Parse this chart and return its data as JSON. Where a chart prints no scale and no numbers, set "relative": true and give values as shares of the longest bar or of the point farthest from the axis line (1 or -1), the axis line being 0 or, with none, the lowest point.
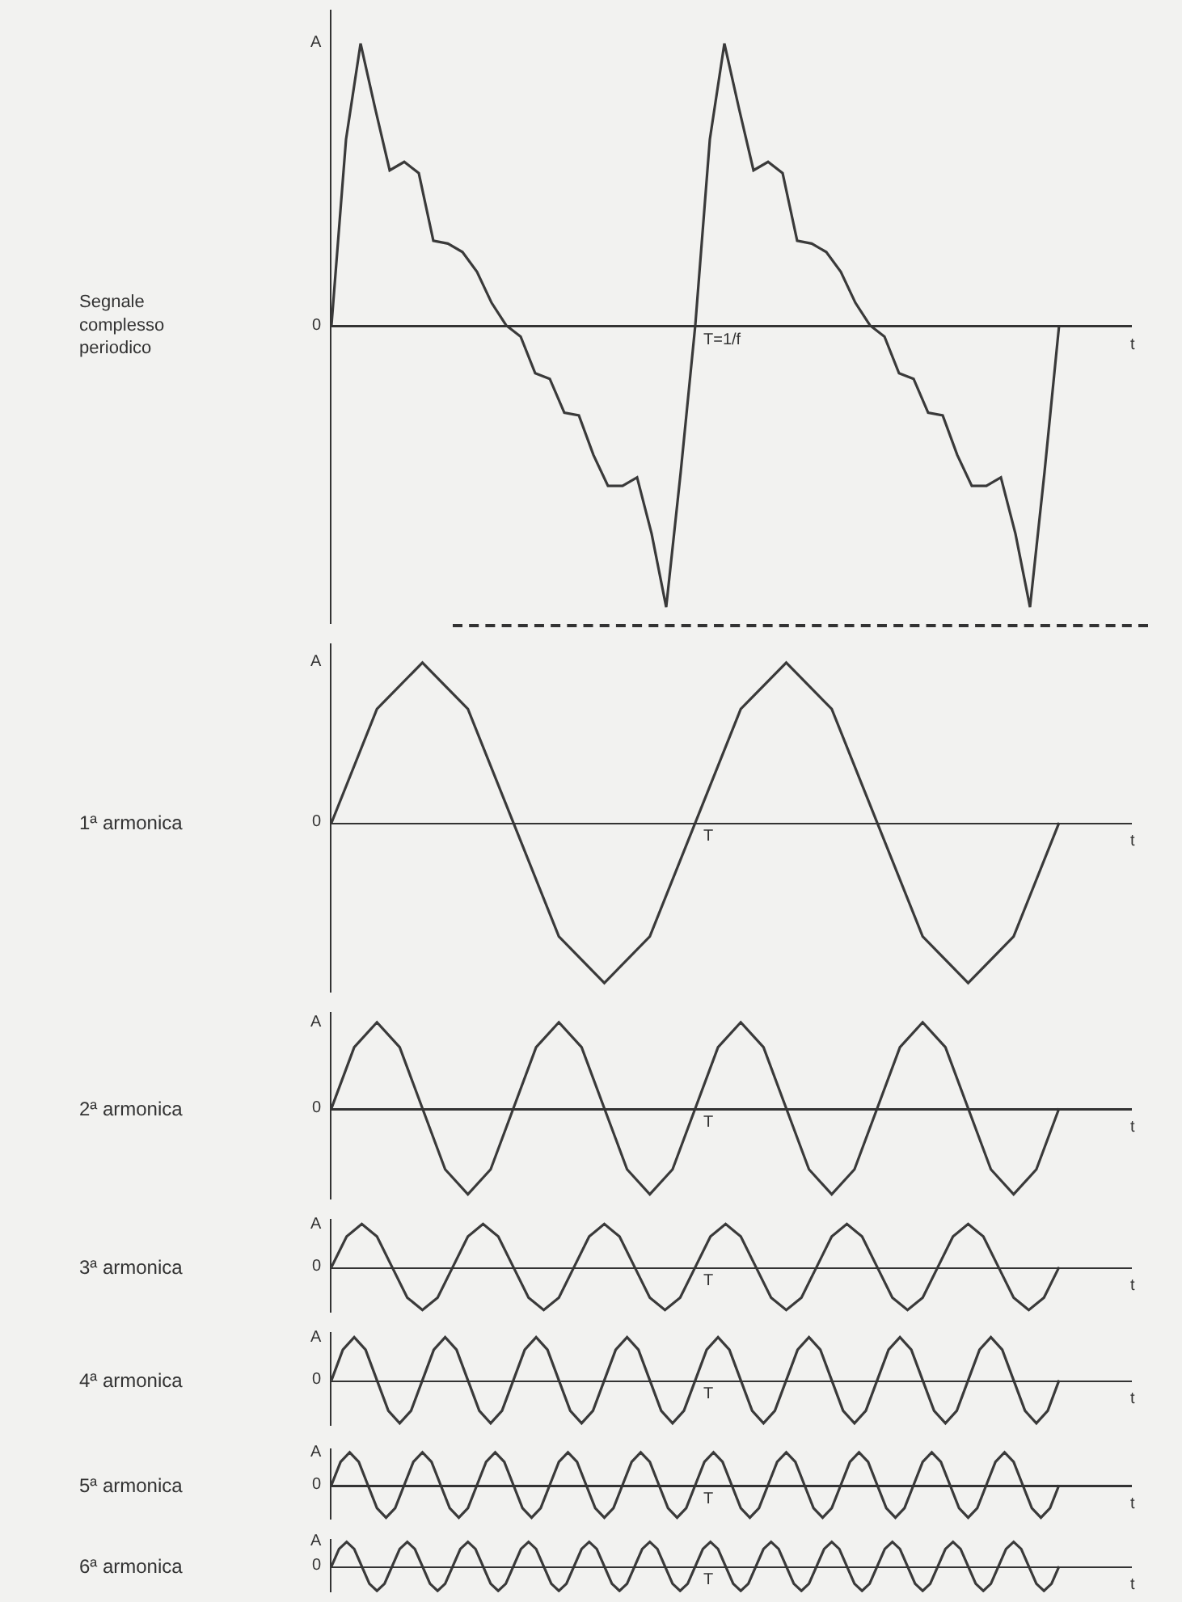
{
  "chart_data": [
    {
      "type": "line",
      "relative": true,
      "ylabel": "Segnale complesso periodico",
      "xlabel": "t",
      "annotations": [
        "A",
        "0",
        "T=1/f"
      ],
      "categories": [
        null,
        null,
        null,
        null,
        null,
        null,
        null,
        null,
        null,
        null,
        null,
        null,
        null,
        null,
        null,
        null,
        null,
        null,
        null,
        null,
        null,
        null,
        null,
        null,
        null,
        null,
        null,
        null,
        null,
        null,
        null,
        null,
        null,
        null,
        null,
        null,
        null,
        null,
        null,
        null,
        null,
        null,
        null,
        null,
        null,
        null,
        null,
        null,
        null,
        null,
        null
      ],
      "series": [
        {
          "color": "#3a3a3a",
          "values": [
            0,
            0.66,
            1,
            0.77,
            0.55,
            0.58,
            0.54,
            0.3,
            0.29,
            0.26,
            0.19,
            0.08,
            0,
            -0.04,
            -0.17,
            -0.19,
            -0.31,
            -0.32,
            -0.46,
            -0.57,
            -0.57,
            -0.54,
            -0.74,
            -1,
            -0.52,
            0,
            0.66,
            1,
            0.77,
            0.55,
            0.58,
            0.54,
            0.3,
            0.29,
            0.26,
            0.19,
            0.08,
            0,
            -0.04,
            -0.17,
            -0.19,
            -0.31,
            -0.32,
            -0.46,
            -0.57,
            -0.57,
            -0.54,
            -0.74,
            -1,
            -0.52,
            0
          ]
        }
      ]
    },
    {
      "type": "line",
      "relative": true,
      "ylabel": "1ª armonica",
      "xlabel": "t",
      "annotations": [
        "A",
        "0",
        "T"
      ],
      "categories": [
        null,
        null,
        null,
        null,
        null,
        null,
        null,
        null,
        null,
        null,
        null,
        null,
        null,
        null,
        null,
        null,
        null
      ],
      "series": [
        {
          "color": "#3a3a3a",
          "values": [
            0,
            0.71,
            1,
            0.71,
            0,
            -0.71,
            -1,
            -0.71,
            0,
            0.71,
            1,
            0.71,
            0,
            -0.71,
            -1,
            -0.71,
            0
          ]
        }
      ]
    },
    {
      "type": "line",
      "relative": true,
      "ylabel": "2ª armonica",
      "xlabel": "t",
      "annotations": [
        "A",
        "0",
        "T"
      ],
      "categories": [
        null,
        null,
        null,
        null,
        null,
        null,
        null,
        null,
        null,
        null,
        null,
        null,
        null,
        null,
        null,
        null,
        null,
        null,
        null,
        null,
        null,
        null,
        null,
        null,
        null,
        null,
        null,
        null,
        null,
        null,
        null,
        null,
        null
      ],
      "series": [
        {
          "color": "#3a3a3a",
          "values": [
            0,
            0.71,
            1,
            0.71,
            0,
            -0.71,
            -1,
            -0.71,
            0,
            0.71,
            1,
            0.71,
            0,
            -0.71,
            -1,
            -0.71,
            0,
            0.71,
            1,
            0.71,
            0,
            -0.71,
            -1,
            -0.71,
            0,
            0.71,
            1,
            0.71,
            0,
            -0.71,
            -1,
            -0.71,
            0
          ]
        }
      ]
    },
    {
      "type": "line",
      "relative": true,
      "ylabel": "3ª armonica",
      "xlabel": "t",
      "annotations": [
        "A",
        "0",
        "T"
      ],
      "categories": [
        null,
        null,
        null,
        null,
        null,
        null,
        null,
        null,
        null,
        null,
        null,
        null,
        null,
        null,
        null,
        null,
        null,
        null,
        null,
        null,
        null,
        null,
        null,
        null,
        null,
        null,
        null,
        null,
        null,
        null,
        null,
        null,
        null,
        null,
        null,
        null,
        null,
        null,
        null,
        null,
        null,
        null,
        null,
        null,
        null,
        null,
        null,
        null,
        null
      ],
      "series": [
        {
          "color": "#3a3a3a",
          "values": [
            0,
            0.71,
            1,
            0.71,
            0,
            -0.71,
            -1,
            -0.71,
            0,
            0.71,
            1,
            0.71,
            0,
            -0.71,
            -1,
            -0.71,
            0,
            0.71,
            1,
            0.71,
            0,
            -0.71,
            -1,
            -0.71,
            0,
            0.71,
            1,
            0.71,
            0,
            -0.71,
            -1,
            -0.71,
            0,
            0.71,
            1,
            0.71,
            0,
            -0.71,
            -1,
            -0.71,
            0,
            0.71,
            1,
            0.71,
            0,
            -0.71,
            -1,
            -0.71,
            0
          ]
        }
      ]
    },
    {
      "type": "line",
      "relative": true,
      "ylabel": "4ª armonica",
      "xlabel": "t",
      "annotations": [
        "A",
        "0",
        "T"
      ],
      "categories": [
        null,
        null,
        null,
        null,
        null,
        null,
        null,
        null,
        null,
        null,
        null,
        null,
        null,
        null,
        null,
        null,
        null,
        null,
        null,
        null,
        null,
        null,
        null,
        null,
        null,
        null,
        null,
        null,
        null,
        null,
        null,
        null,
        null,
        null,
        null,
        null,
        null,
        null,
        null,
        null,
        null,
        null,
        null,
        null,
        null,
        null,
        null,
        null,
        null,
        null,
        null,
        null,
        null,
        null,
        null,
        null,
        null,
        null,
        null,
        null,
        null,
        null,
        null,
        null,
        null
      ],
      "series": [
        {
          "color": "#3a3a3a",
          "values": [
            0,
            0.71,
            1,
            0.71,
            0,
            -0.71,
            -1,
            -0.71,
            0,
            0.71,
            1,
            0.71,
            0,
            -0.71,
            -1,
            -0.71,
            0,
            0.71,
            1,
            0.71,
            0,
            -0.71,
            -1,
            -0.71,
            0,
            0.71,
            1,
            0.71,
            0,
            -0.71,
            -1,
            -0.71,
            0,
            0.71,
            1,
            0.71,
            0,
            -0.71,
            -1,
            -0.71,
            0,
            0.71,
            1,
            0.71,
            0,
            -0.71,
            -1,
            -0.71,
            0,
            0.71,
            1,
            0.71,
            0,
            -0.71,
            -1,
            -0.71,
            0,
            0.71,
            1,
            0.71,
            0,
            -0.71,
            -1,
            -0.71,
            0
          ]
        }
      ]
    },
    {
      "type": "line",
      "relative": true,
      "ylabel": "5ª armonica",
      "xlabel": "t",
      "annotations": [
        "A",
        "0",
        "T"
      ],
      "categories": [
        null,
        null,
        null,
        null,
        null,
        null,
        null,
        null,
        null,
        null,
        null,
        null,
        null,
        null,
        null,
        null,
        null,
        null,
        null,
        null,
        null,
        null,
        null,
        null,
        null,
        null,
        null,
        null,
        null,
        null,
        null,
        null,
        null,
        null,
        null,
        null,
        null,
        null,
        null,
        null,
        null,
        null,
        null,
        null,
        null,
        null,
        null,
        null,
        null,
        null,
        null,
        null,
        null,
        null,
        null,
        null,
        null,
        null,
        null,
        null,
        null,
        null,
        null,
        null,
        null,
        null,
        null,
        null,
        null,
        null,
        null,
        null,
        null,
        null,
        null,
        null,
        null,
        null,
        null,
        null,
        null
      ],
      "series": [
        {
          "color": "#3a3a3a",
          "values": [
            0,
            0.71,
            1,
            0.71,
            0,
            -0.71,
            -1,
            -0.71,
            0,
            0.71,
            1,
            0.71,
            0,
            -0.71,
            -1,
            -0.71,
            0,
            0.71,
            1,
            0.71,
            0,
            -0.71,
            -1,
            -0.71,
            0,
            0.71,
            1,
            0.71,
            0,
            -0.71,
            -1,
            -0.71,
            0,
            0.71,
            1,
            0.71,
            0,
            -0.71,
            -1,
            -0.71,
            0,
            0.71,
            1,
            0.71,
            0,
            -0.71,
            -1,
            -0.71,
            0,
            0.71,
            1,
            0.71,
            0,
            -0.71,
            -1,
            -0.71,
            0,
            0.71,
            1,
            0.71,
            0,
            -0.71,
            -1,
            -0.71,
            0,
            0.71,
            1,
            0.71,
            0,
            -0.71,
            -1,
            -0.71,
            0,
            0.71,
            1,
            0.71,
            0,
            -0.71,
            -1,
            -0.71,
            0
          ]
        }
      ]
    },
    {
      "type": "line",
      "relative": true,
      "ylabel": "6ª armonica",
      "xlabel": "t",
      "annotations": [
        "A",
        "0",
        "T"
      ],
      "categories": [
        null,
        null,
        null,
        null,
        null,
        null,
        null,
        null,
        null,
        null,
        null,
        null,
        null,
        null,
        null,
        null,
        null,
        null,
        null,
        null,
        null,
        null,
        null,
        null,
        null,
        null,
        null,
        null,
        null,
        null,
        null,
        null,
        null,
        null,
        null,
        null,
        null,
        null,
        null,
        null,
        null,
        null,
        null,
        null,
        null,
        null,
        null,
        null,
        null,
        null,
        null,
        null,
        null,
        null,
        null,
        null,
        null,
        null,
        null,
        null,
        null,
        null,
        null,
        null,
        null,
        null,
        null,
        null,
        null,
        null,
        null,
        null,
        null,
        null,
        null,
        null,
        null,
        null,
        null,
        null,
        null,
        null,
        null,
        null,
        null,
        null,
        null,
        null,
        null,
        null,
        null,
        null,
        null,
        null,
        null,
        null,
        null
      ],
      "series": [
        {
          "color": "#3a3a3a",
          "values": [
            0,
            0.71,
            1,
            0.71,
            0,
            -0.71,
            -1,
            -0.71,
            0,
            0.71,
            1,
            0.71,
            0,
            -0.71,
            -1,
            -0.71,
            0,
            0.71,
            1,
            0.71,
            0,
            -0.71,
            -1,
            -0.71,
            0,
            0.71,
            1,
            0.71,
            0,
            -0.71,
            -1,
            -0.71,
            0,
            0.71,
            1,
            0.71,
            0,
            -0.71,
            -1,
            -0.71,
            0,
            0.71,
            1,
            0.71,
            0,
            -0.71,
            -1,
            -0.71,
            0,
            0.71,
            1,
            0.71,
            0,
            -0.71,
            -1,
            -0.71,
            0,
            0.71,
            1,
            0.71,
            0,
            -0.71,
            -1,
            -0.71,
            0,
            0.71,
            1,
            0.71,
            0,
            -0.71,
            -1,
            -0.71,
            0,
            0.71,
            1,
            0.71,
            0,
            -0.71,
            -1,
            -0.71,
            0,
            0.71,
            1,
            0.71,
            0,
            -0.71,
            -1,
            -0.71,
            0,
            0.71,
            1,
            0.71,
            0,
            -0.71,
            -1,
            -0.71,
            0
          ]
        }
      ]
    }
  ]
}
